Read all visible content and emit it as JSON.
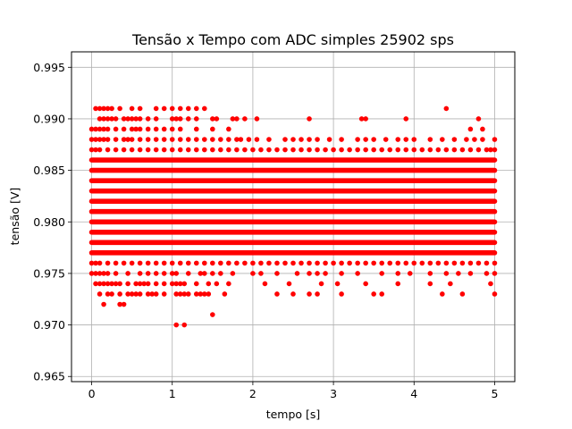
{
  "chart_data": {
    "type": "scatter",
    "title": "Tensão x Tempo com ADC simples 25902 sps",
    "xlabel": "tempo [s]",
    "ylabel": "tensão [V]",
    "xlim": [
      -0.25,
      5.25
    ],
    "ylim": [
      0.9645,
      0.9965
    ],
    "xticks": [
      0,
      1,
      2,
      3,
      4,
      5
    ],
    "xtick_labels": [
      "0",
      "1",
      "2",
      "3",
      "4",
      "5"
    ],
    "yticks": [
      0.965,
      0.97,
      0.975,
      0.98,
      0.985,
      0.99,
      0.995
    ],
    "ytick_labels": [
      "0.965",
      "0.970",
      "0.975",
      "0.980",
      "0.985",
      "0.990",
      "0.995"
    ],
    "grid": true,
    "marker_color": "#ff0000",
    "x_span": [
      0.0,
      5.0
    ],
    "dense_levels": [
      0.977,
      0.978,
      0.979,
      0.98,
      0.981,
      0.982,
      0.983,
      0.984,
      0.985,
      0.986
    ],
    "sparse_levels": [
      {
        "y": 0.987,
        "x": [
          0.0,
          0.05,
          0.1,
          0.2,
          0.3,
          0.4,
          0.5,
          0.6,
          0.7,
          0.8,
          0.9,
          1.0,
          1.1,
          1.2,
          1.3,
          1.4,
          1.5,
          1.6,
          1.7,
          1.8,
          1.9,
          2.0,
          2.1,
          2.2,
          2.3,
          2.4,
          2.5,
          2.6,
          2.7,
          2.8,
          2.9,
          3.0,
          3.1,
          3.2,
          3.3,
          3.4,
          3.5,
          3.6,
          3.7,
          3.8,
          3.9,
          4.0,
          4.1,
          4.2,
          4.3,
          4.4,
          4.5,
          4.6,
          4.7,
          4.8,
          4.9,
          4.95,
          5.0
        ]
      },
      {
        "y": 0.988,
        "x": [
          0.0,
          0.05,
          0.1,
          0.15,
          0.2,
          0.3,
          0.4,
          0.45,
          0.5,
          0.6,
          0.7,
          0.8,
          0.9,
          1.0,
          1.1,
          1.2,
          1.3,
          1.4,
          1.5,
          1.6,
          1.7,
          1.8,
          1.85,
          1.95,
          2.05,
          2.2,
          2.4,
          2.5,
          2.6,
          2.7,
          2.8,
          2.95,
          3.1,
          3.3,
          3.4,
          3.5,
          3.65,
          3.8,
          3.9,
          4.0,
          4.2,
          4.35,
          4.5,
          4.65,
          4.75,
          4.85,
          5.0
        ]
      },
      {
        "y": 0.989,
        "x": [
          0.0,
          0.05,
          0.1,
          0.15,
          0.2,
          0.3,
          0.4,
          0.5,
          0.55,
          0.6,
          0.7,
          0.8,
          0.9,
          1.0,
          1.1,
          1.3,
          1.5,
          1.7,
          4.7,
          4.85
        ]
      },
      {
        "y": 0.99,
        "x": [
          0.1,
          0.15,
          0.2,
          0.25,
          0.3,
          0.4,
          0.45,
          0.5,
          0.55,
          0.6,
          0.7,
          0.8,
          1.0,
          1.05,
          1.1,
          1.2,
          1.3,
          1.5,
          1.55,
          1.75,
          1.8,
          1.9,
          2.05,
          2.7,
          3.35,
          3.4,
          3.9,
          4.8
        ]
      },
      {
        "y": 0.991,
        "x": [
          0.05,
          0.1,
          0.15,
          0.2,
          0.25,
          0.35,
          0.5,
          0.6,
          0.8,
          0.9,
          1.0,
          1.1,
          1.2,
          1.3,
          1.4,
          4.4
        ]
      },
      {
        "y": 0.976,
        "x": [
          0.0,
          0.05,
          0.1,
          0.2,
          0.3,
          0.4,
          0.5,
          0.6,
          0.7,
          0.8,
          0.9,
          1.0,
          1.1,
          1.2,
          1.3,
          1.4,
          1.5,
          1.6,
          1.7,
          1.8,
          1.9,
          2.0,
          2.1,
          2.2,
          2.3,
          2.4,
          2.5,
          2.6,
          2.7,
          2.8,
          2.9,
          3.0,
          3.1,
          3.2,
          3.3,
          3.4,
          3.5,
          3.6,
          3.7,
          3.8,
          3.9,
          4.0,
          4.1,
          4.2,
          4.3,
          4.4,
          4.5,
          4.6,
          4.7,
          4.8,
          4.9,
          5.0
        ]
      },
      {
        "y": 0.975,
        "x": [
          0.0,
          0.05,
          0.1,
          0.15,
          0.2,
          0.3,
          0.45,
          0.6,
          0.7,
          0.8,
          0.9,
          1.0,
          1.05,
          1.2,
          1.35,
          1.4,
          1.5,
          1.6,
          1.75,
          2.0,
          2.1,
          2.3,
          2.55,
          2.7,
          2.8,
          2.9,
          3.1,
          3.3,
          3.6,
          3.8,
          3.95,
          4.2,
          4.4,
          4.55,
          4.7,
          4.9,
          5.0
        ]
      },
      {
        "y": 0.974,
        "x": [
          0.05,
          0.1,
          0.15,
          0.2,
          0.25,
          0.3,
          0.35,
          0.45,
          0.55,
          0.6,
          0.65,
          0.7,
          0.8,
          0.9,
          1.0,
          1.05,
          1.1,
          1.15,
          1.3,
          1.45,
          1.55,
          1.7,
          2.15,
          2.45,
          2.85,
          3.05,
          3.4,
          3.8,
          4.2,
          4.45,
          4.95
        ]
      },
      {
        "y": 0.973,
        "x": [
          0.1,
          0.2,
          0.25,
          0.35,
          0.45,
          0.5,
          0.55,
          0.6,
          0.7,
          0.75,
          0.8,
          0.9,
          1.05,
          1.1,
          1.15,
          1.2,
          1.3,
          1.35,
          1.4,
          1.45,
          1.65,
          2.3,
          2.5,
          2.7,
          2.8,
          3.1,
          3.5,
          3.6,
          4.35,
          4.6,
          5.0
        ]
      },
      {
        "y": 0.972,
        "x": [
          0.15,
          0.35,
          0.4
        ]
      },
      {
        "y": 0.971,
        "x": [
          1.5
        ]
      },
      {
        "y": 0.97,
        "x": [
          1.05,
          1.15
        ]
      }
    ]
  }
}
